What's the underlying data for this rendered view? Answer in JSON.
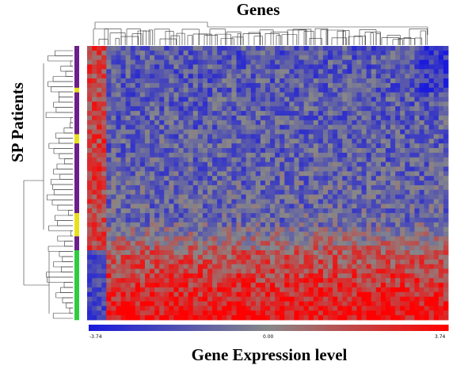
{
  "chart_data": {
    "type": "heatmap",
    "title": "Genes",
    "xlabel": "Genes",
    "ylabel": "SP Patients",
    "colorbar_label": "Gene Expression level",
    "colorbar_ticks": [
      "-3.74",
      "0.00",
      "3.74"
    ],
    "value_range": [
      -3.74,
      3.74
    ],
    "colors": {
      "low": "#1a1adc",
      "mid": "#888888",
      "high": "#ff0000"
    },
    "rows": 59,
    "cols": 75,
    "row_groups": [
      {
        "color": "#6a1f8a",
        "rows": 9
      },
      {
        "color": "#e8e01a",
        "rows": 1
      },
      {
        "color": "#6a1f8a",
        "rows": 9
      },
      {
        "color": "#e8e01a",
        "rows": 2
      },
      {
        "color": "#6a1f8a",
        "rows": 15
      },
      {
        "color": "#e8e01a",
        "rows": 5
      },
      {
        "color": "#6a1f8a",
        "rows": 3
      },
      {
        "color": "#2ecc40",
        "rows": 15
      }
    ]
  }
}
